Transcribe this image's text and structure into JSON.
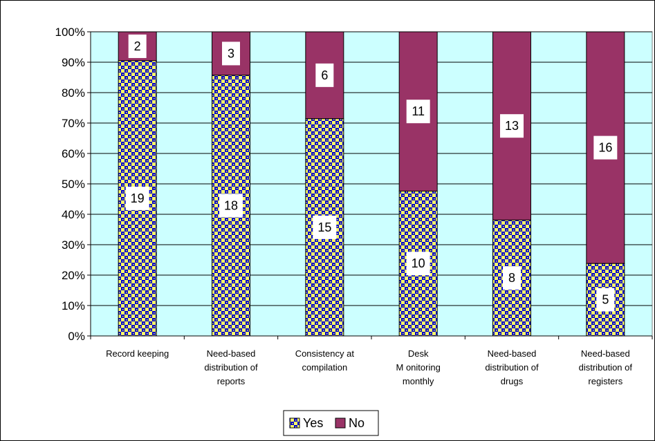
{
  "chart_data": {
    "type": "bar",
    "stacked": "percent",
    "title": "",
    "xlabel": "",
    "ylabel": "",
    "ylim": [
      0,
      100
    ],
    "yticks": [
      "0%",
      "10%",
      "20%",
      "30%",
      "40%",
      "50%",
      "60%",
      "70%",
      "80%",
      "90%",
      "100%"
    ],
    "categories": [
      [
        "Record keeping"
      ],
      [
        "Need-based",
        "distribution of",
        "reports"
      ],
      [
        "Consistency at",
        "compilation"
      ],
      [
        "Desk",
        "M onitoring",
        "monthly"
      ],
      [
        "Need-based",
        "distribution of",
        "drugs"
      ],
      [
        "Need-based",
        "distribution of",
        "registers"
      ]
    ],
    "series": [
      {
        "name": "Yes",
        "values": [
          19,
          18,
          15,
          10,
          8,
          5
        ],
        "color": "#ffff66",
        "pattern_color": "#0000cc"
      },
      {
        "name": "No",
        "values": [
          2,
          3,
          6,
          11,
          13,
          16
        ],
        "color": "#993366"
      }
    ],
    "grid": true,
    "plot_background": "#ccffff",
    "legend": "bottom"
  }
}
